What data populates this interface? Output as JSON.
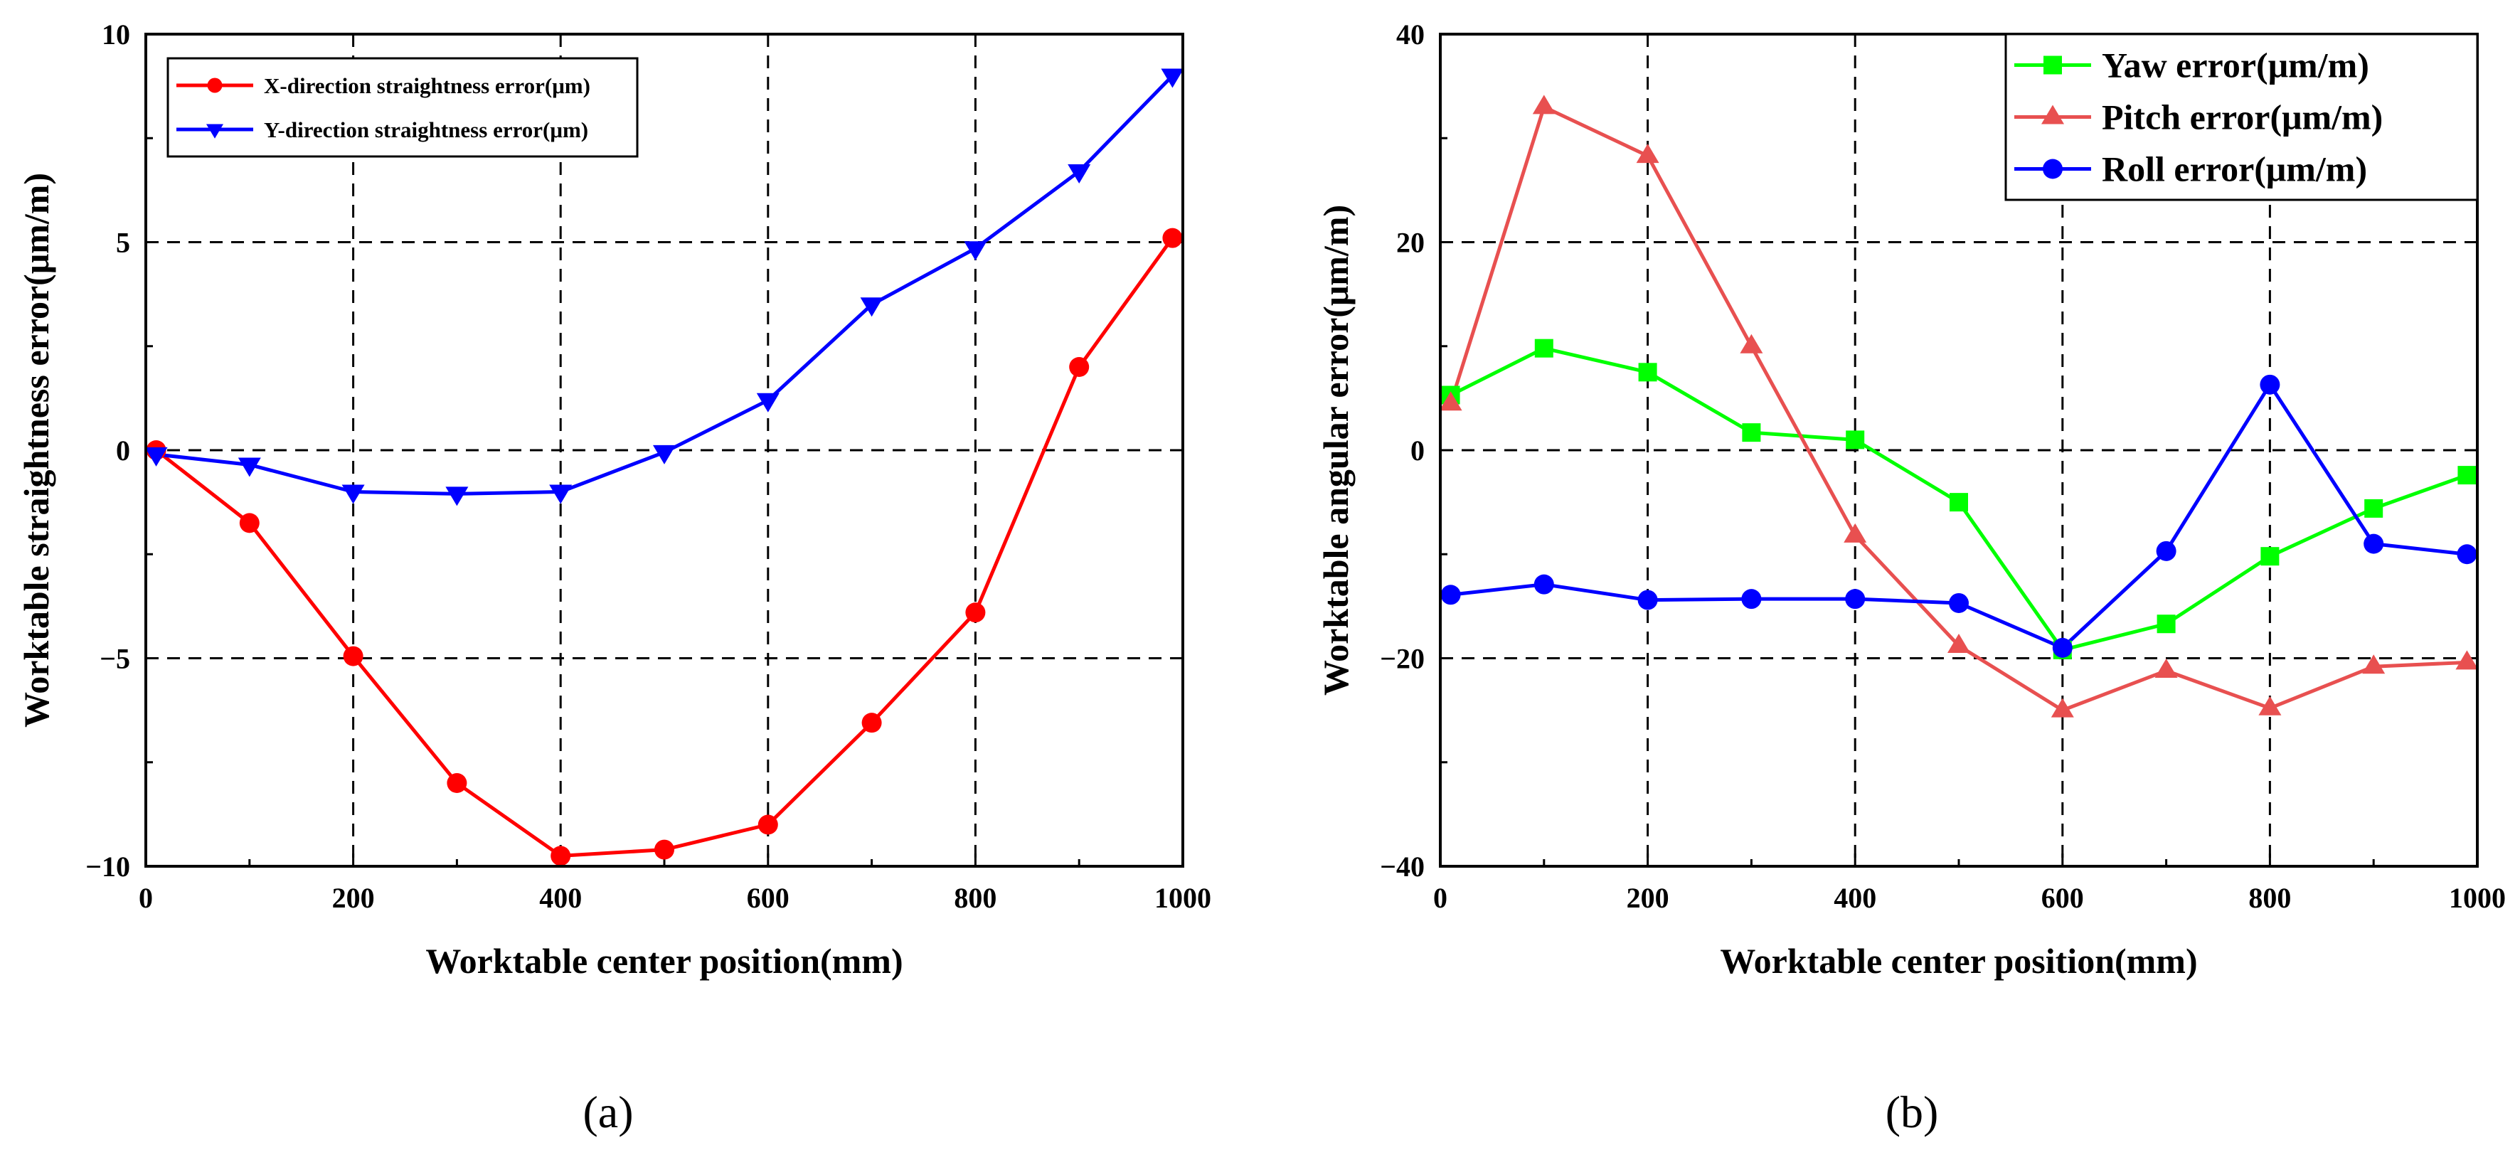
{
  "chart_data": [
    {
      "type": "line",
      "caption": "(a)",
      "title": "",
      "xlabel": "Worktable center position(mm)",
      "ylabel": "Worktable straightness error(μm/m)",
      "xlim": [
        0,
        1000
      ],
      "ylim": [
        -10,
        10
      ],
      "xticks": [
        "0",
        "200",
        "400",
        "600",
        "800",
        "1000"
      ],
      "yticks": [
        "−10",
        "−5",
        "0",
        "5",
        "10"
      ],
      "grid": true,
      "legend_position": "top-left",
      "series": [
        {
          "name": "X-direction straightness error(μm)",
          "color": "#ff0000",
          "marker": "circle",
          "x": [
            10,
            100,
            200,
            300,
            400,
            500,
            600,
            700,
            800,
            900,
            990
          ],
          "y": [
            0,
            -1.75,
            -4.95,
            -8.0,
            -9.75,
            -9.6,
            -9.0,
            -6.55,
            -3.9,
            2.0,
            5.1
          ]
        },
        {
          "name": "Y-direction straightness error(μm)",
          "color": "#0000ff",
          "marker": "triangle-down",
          "x": [
            10,
            100,
            200,
            300,
            400,
            500,
            600,
            700,
            800,
            900,
            990
          ],
          "y": [
            -0.1,
            -0.35,
            -1.0,
            -1.05,
            -1.0,
            -0.05,
            1.2,
            3.5,
            4.85,
            6.7,
            9.0
          ]
        }
      ]
    },
    {
      "type": "line",
      "caption": "(b)",
      "title": "",
      "xlabel": "Worktable center position(mm)",
      "ylabel": "Worktable angular error(μm/m)",
      "xlim": [
        0,
        1000
      ],
      "ylim": [
        -40,
        40
      ],
      "xticks": [
        "0",
        "200",
        "400",
        "600",
        "800",
        "1000"
      ],
      "yticks": [
        "−40",
        "−20",
        "0",
        "20",
        "40"
      ],
      "grid": true,
      "legend_position": "top-right",
      "series": [
        {
          "name": "Yaw error(μm/m)",
          "color": "#00ff00",
          "marker": "square",
          "x": [
            10,
            100,
            200,
            300,
            400,
            500,
            600,
            700,
            800,
            900,
            990
          ],
          "y": [
            5.3,
            9.8,
            7.5,
            1.7,
            1.0,
            -5.0,
            -19.2,
            -16.7,
            -10.2,
            -5.6,
            -2.4
          ]
        },
        {
          "name": "Pitch error(μm/m)",
          "color": "#e85050",
          "marker": "triangle-up",
          "x": [
            10,
            100,
            200,
            300,
            400,
            500,
            600,
            700,
            800,
            900,
            990
          ],
          "y": [
            4.5,
            33.0,
            28.3,
            10.0,
            -8.2,
            -18.8,
            -25.0,
            -21.2,
            -24.8,
            -20.8,
            -20.4
          ]
        },
        {
          "name": "Roll error(μm/m)",
          "color": "#0000ff",
          "marker": "circle",
          "x": [
            10,
            100,
            200,
            300,
            400,
            500,
            600,
            700,
            800,
            900,
            990
          ],
          "y": [
            -13.9,
            -12.9,
            -14.4,
            -14.3,
            -14.3,
            -14.7,
            -19.0,
            -9.7,
            6.3,
            -9.0,
            -10.0
          ]
        }
      ]
    }
  ]
}
